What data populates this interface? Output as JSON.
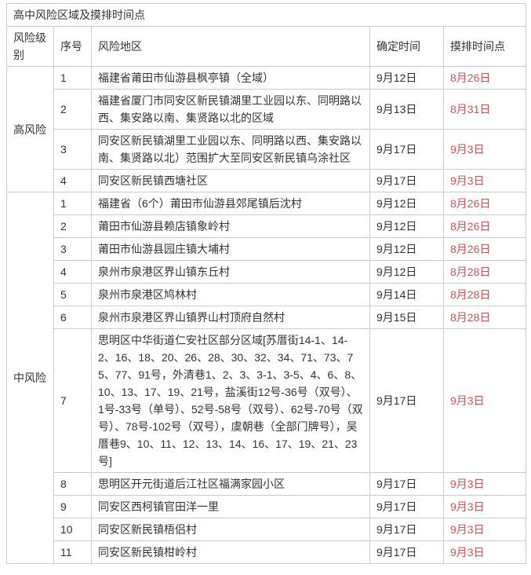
{
  "title": "高中风险区域及摸排时间点",
  "colors": {
    "accent_red": "#cb545a",
    "border": "#cccccc",
    "text": "#333333",
    "background": "#ffffff"
  },
  "table": {
    "headers": {
      "level": "风险级别",
      "index": "序号",
      "area": "风险地区",
      "confirm_time": "确定时间",
      "check_time": "摸排时间点"
    },
    "groups": [
      {
        "level": "高风险",
        "rows": [
          {
            "index": "1",
            "area": "福建省莆田市仙游县枫亭镇（全域）",
            "confirm": "9月12日",
            "check": "8月26日"
          },
          {
            "index": "2",
            "area": "福建省厦门市同安区新民镇湖里工业园以东、同明路以西、集安路以南、集贤路以北的区域",
            "confirm": "9月13日",
            "check": "8月31日"
          },
          {
            "index": "3",
            "area": "同安区新民镇湖里工业园以东、同明路以西、集安路以南、集贤路以北）范围扩大至同安区新民镇乌涂社区",
            "confirm": "9月17日",
            "check": "9月3日"
          },
          {
            "index": "4",
            "area": "同安区新民镇西塘社区",
            "confirm": "9月17日",
            "check": "9月3日"
          }
        ]
      },
      {
        "level": "中风险",
        "rows": [
          {
            "index": "1",
            "area": "福建省（6个）莆田市仙游县郊尾镇后沈村",
            "confirm": "9月12日",
            "check": "8月26日"
          },
          {
            "index": "2",
            "area": "莆田市仙游县赖店镇象岭村",
            "confirm": "9月12日",
            "check": "8月26日"
          },
          {
            "index": "3",
            "area": "莆田市仙游县园庄镇大埔村",
            "confirm": "9月12日",
            "check": "8月26日"
          },
          {
            "index": "4",
            "area": "泉州市泉港区界山镇东丘村",
            "confirm": "9月12日",
            "check": "8月28日"
          },
          {
            "index": "5",
            "area": "泉州市泉港区鸠林村",
            "confirm": "9月14日",
            "check": "8月28日"
          },
          {
            "index": "6",
            "area": "泉州市泉港区界山镇界山村顶府自然村",
            "confirm": "9月15日",
            "check": "8月28日"
          },
          {
            "index": "7",
            "area": "思明区中华街道仁安社区部分区域[苏厝街14-1、14-2、16、18、20、26、28、30、32、34、71、73、75、77、91号，外清巷1、2、3、3-1、3-5、4、6、8、10、13、17、19、21号，盐溪街12号-36号（双号）、1号-33号（单号）、52号-58号（双号）、62号-70号（双号）、78号-102号（双号），虞朝巷（全部门牌号），吴厝巷9、10、11、12、13、14、16、17、19、21、23号]",
            "confirm": "9月17日",
            "check": "9月3日"
          },
          {
            "index": "8",
            "area": "思明区开元街道后江社区福满家园小区",
            "confirm": "9月17日",
            "check": "9月3日"
          },
          {
            "index": "9",
            "area": "同安区西柯镇官田洋一里",
            "confirm": "9月17日",
            "check": "9月3日"
          },
          {
            "index": "10",
            "area": "同安区新民镇梧侣村",
            "confirm": "9月17日",
            "check": "9月3日"
          },
          {
            "index": "11",
            "area": "同安区新民镇柑岭村",
            "confirm": "9月17日",
            "check": "9月3日"
          }
        ]
      }
    ]
  }
}
